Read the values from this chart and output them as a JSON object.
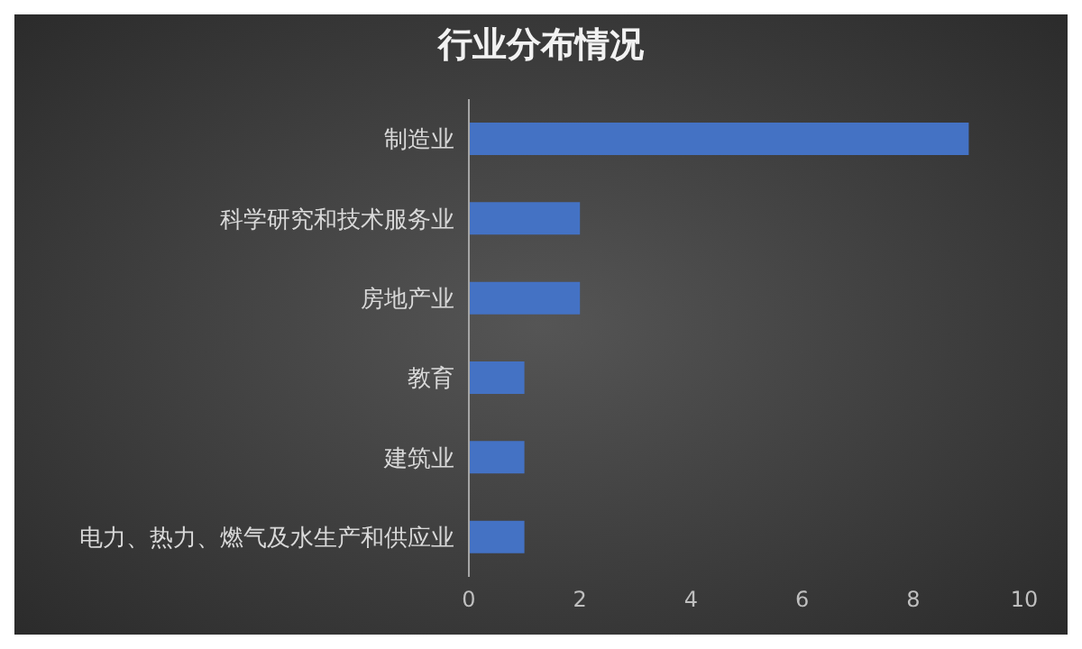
{
  "chart_data": {
    "type": "bar",
    "title": "行业分布情况",
    "orientation": "horizontal",
    "categories": [
      "制造业",
      "科学研究和技术服务业",
      "房地产业",
      "教育",
      "建筑业",
      "电力、热力、燃气及水生产和供应业"
    ],
    "values": [
      9,
      2,
      2,
      1,
      1,
      1
    ],
    "color": "#4472c4",
    "xlim": [
      0,
      10
    ],
    "xticks": [
      0,
      2,
      4,
      6,
      8,
      10
    ],
    "grid": false
  }
}
